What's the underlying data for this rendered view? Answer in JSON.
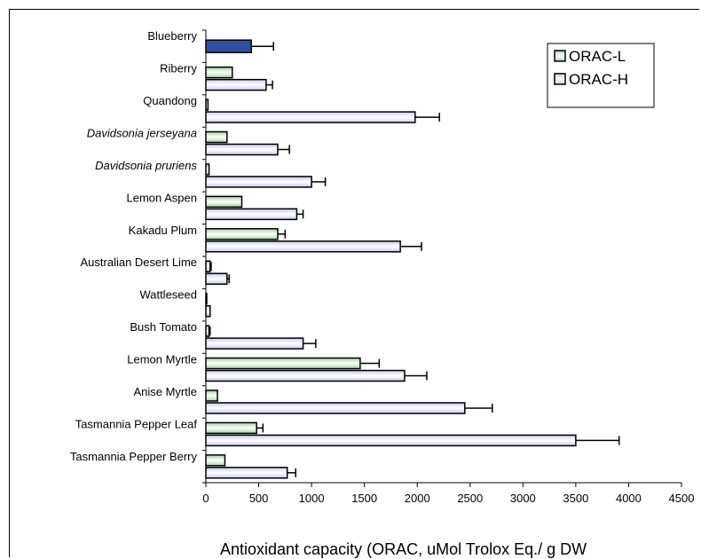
{
  "chart_data": {
    "type": "bar",
    "orientation": "horizontal",
    "title": "",
    "xlabel": "Antioxidant capacity (ORAC, uMol Trolox Eq./ g DW",
    "ylabel": "",
    "xlim": [
      0,
      4500
    ],
    "xticks": [
      0,
      500,
      1000,
      1500,
      2000,
      2500,
      3000,
      3500,
      4000,
      4500
    ],
    "grid": false,
    "legend": {
      "position": "top-right",
      "entries": [
        "ORAC-L",
        "ORAC-H"
      ]
    },
    "colors": {
      "orac_l": "#9fd49f",
      "orac_h": "#c8c8f0",
      "blueberry": "#2f4fa0"
    },
    "categories": [
      {
        "name": "Blueberry",
        "italic": false
      },
      {
        "name": "Riberry",
        "italic": false
      },
      {
        "name": "Quandong",
        "italic": false
      },
      {
        "name": "Davidsonia jerseyana",
        "italic": true
      },
      {
        "name": "Davidsonia pruriens",
        "italic": true
      },
      {
        "name": "Lemon Aspen",
        "italic": false
      },
      {
        "name": "Kakadu Plum",
        "italic": false
      },
      {
        "name": "Australian Desert Lime",
        "italic": false
      },
      {
        "name": "Wattleseed",
        "italic": false
      },
      {
        "name": "Bush Tomato",
        "italic": false
      },
      {
        "name": "Lemon Myrtle",
        "italic": false
      },
      {
        "name": "Anise Myrtle",
        "italic": false
      },
      {
        "name": "Tasmannia Pepper Leaf",
        "italic": false
      },
      {
        "name": "Tasmannia Pepper Berry",
        "italic": false
      }
    ],
    "series": [
      {
        "name": "ORAC-L",
        "values": [
          null,
          250,
          20,
          200,
          30,
          340,
          680,
          40,
          5,
          30,
          1460,
          110,
          480,
          180
        ],
        "errors": [
          null,
          0,
          0,
          0,
          0,
          0,
          70,
          10,
          0,
          10,
          180,
          0,
          60,
          0
        ]
      },
      {
        "name": "ORAC-H",
        "values": [
          null,
          570,
          1980,
          680,
          1000,
          860,
          1840,
          200,
          40,
          920,
          1880,
          2450,
          3500,
          770
        ],
        "errors": [
          null,
          60,
          230,
          110,
          130,
          60,
          200,
          20,
          0,
          120,
          210,
          260,
          410,
          80
        ]
      }
    ],
    "single_bars": [
      {
        "category": "Blueberry",
        "value": 430,
        "error": 210
      }
    ]
  }
}
